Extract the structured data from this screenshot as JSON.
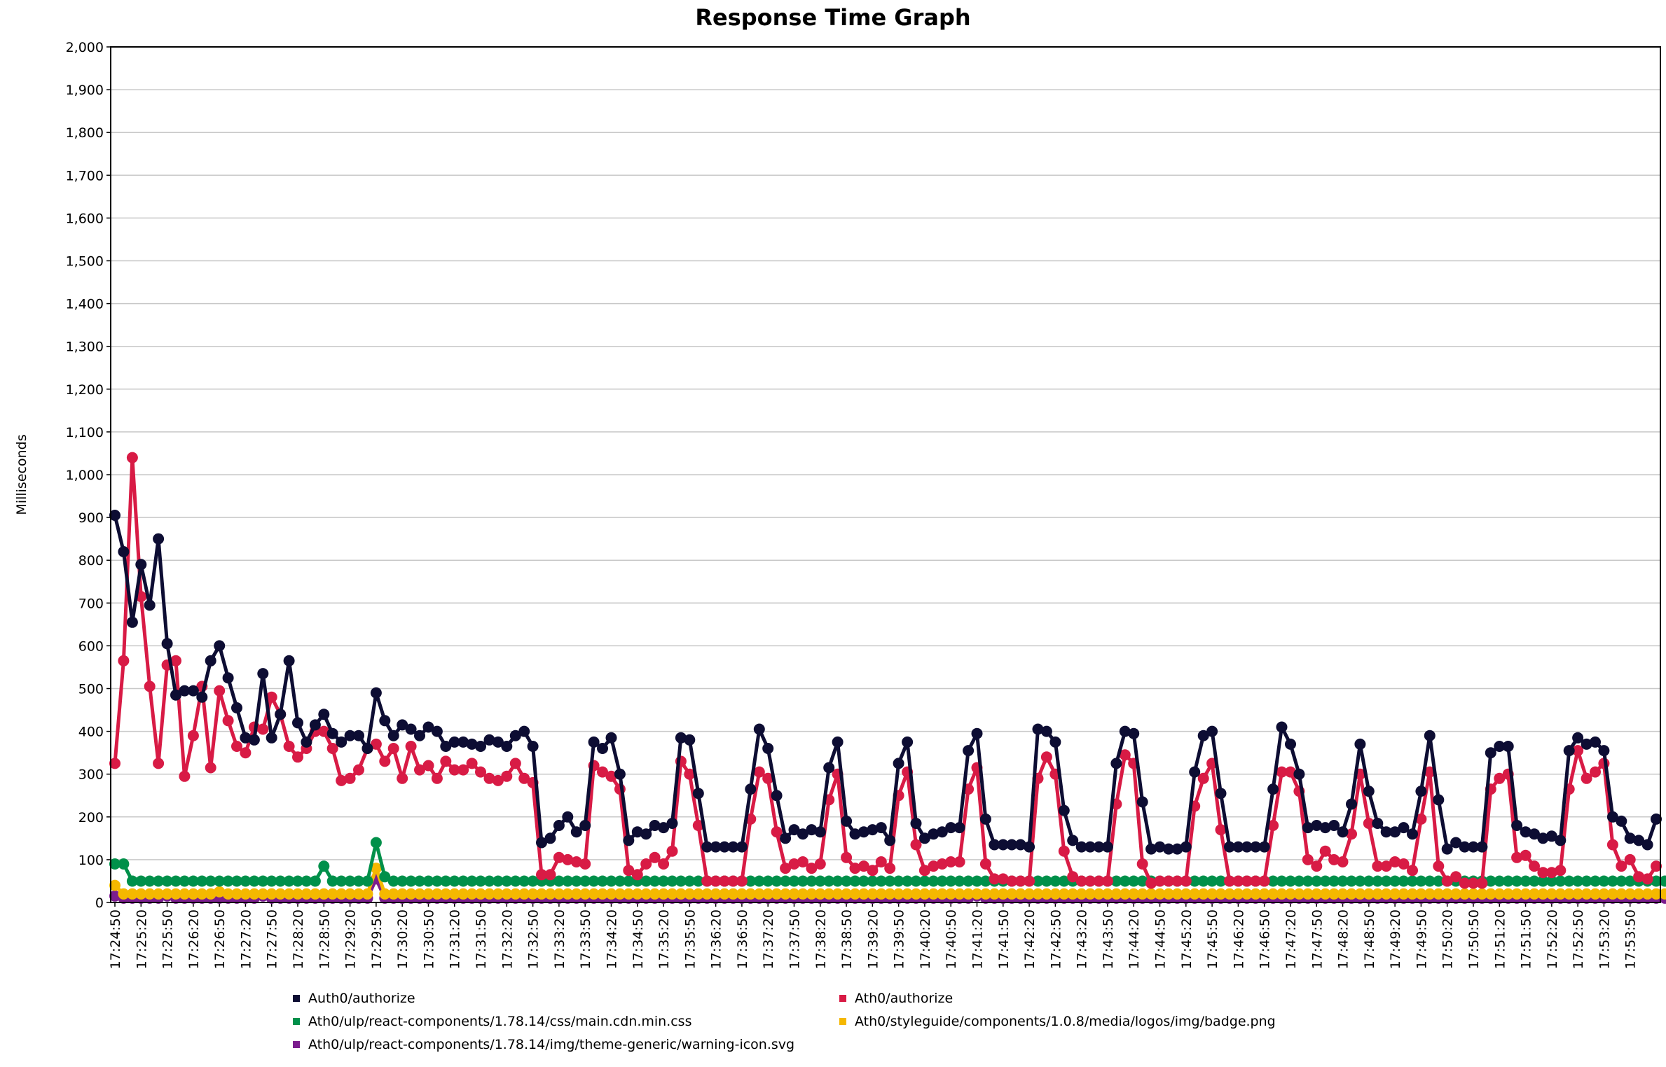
{
  "chart_data": {
    "type": "line",
    "title": "Response Time Graph",
    "ylabel": "Milliseconds",
    "xlabel": "",
    "ylim": [
      0,
      2000
    ],
    "yticks": [
      "0",
      "100",
      "200",
      "300",
      "400",
      "500",
      "600",
      "700",
      "800",
      "900",
      "1,000",
      "1,100",
      "1,200",
      "1,300",
      "1,400",
      "1,500",
      "1,600",
      "1,700",
      "1,800",
      "1,900",
      "2,000"
    ],
    "grid": true,
    "legend_position": "bottom",
    "x_start": "17:24:50",
    "x_end": "17:54:20",
    "x_tick_labels": [
      "17:24:50",
      "17:25:20",
      "17:25:50",
      "17:26:20",
      "17:26:50",
      "17:27:20",
      "17:27:50",
      "17:28:20",
      "17:28:50",
      "17:29:20",
      "17:29:50",
      "17:30:20",
      "17:30:50",
      "17:31:20",
      "17:31:50",
      "17:32:20",
      "17:32:50",
      "17:33:20",
      "17:33:50",
      "17:34:20",
      "17:34:50",
      "17:35:20",
      "17:35:50",
      "17:36:20",
      "17:36:50",
      "17:37:20",
      "17:37:50",
      "17:38:20",
      "17:38:50",
      "17:39:20",
      "17:39:50",
      "17:40:20",
      "17:40:50",
      "17:41:20",
      "17:41:50",
      "17:42:20",
      "17:42:50",
      "17:43:20",
      "17:43:50",
      "17:44:20",
      "17:44:50",
      "17:45:20",
      "17:45:50",
      "17:46:20",
      "17:46:50",
      "17:47:20",
      "17:47:50",
      "17:48:20",
      "17:48:50",
      "17:49:20",
      "17:49:50",
      "17:50:20",
      "17:50:50",
      "17:51:20",
      "17:51:50",
      "17:52:20",
      "17:52:50",
      "17:53:20",
      "17:53:50"
    ],
    "series": [
      {
        "name": "Auth0/authorize",
        "color": "#0d0d33",
        "values": [
          905,
          820,
          655,
          790,
          695,
          850,
          605,
          485,
          495,
          495,
          480,
          565,
          600,
          525,
          455,
          385,
          380,
          535,
          385,
          440,
          565,
          420,
          375,
          415,
          440,
          395,
          375,
          390,
          390,
          360,
          490,
          425,
          390,
          415,
          405,
          390,
          410,
          400,
          365,
          375,
          375,
          370,
          365,
          380,
          375,
          365,
          390,
          400,
          365,
          140,
          150,
          180,
          200,
          165,
          180,
          375,
          360,
          385,
          300,
          145,
          165,
          160,
          180,
          175,
          185,
          385,
          380,
          255,
          130,
          130,
          130,
          130,
          130,
          265,
          405,
          360,
          250,
          150,
          170,
          160,
          170,
          165,
          315,
          375,
          190,
          160,
          165,
          170,
          175,
          145,
          325,
          375,
          185,
          150,
          160,
          165,
          175,
          175,
          355,
          395,
          195,
          135,
          135,
          135,
          135,
          130,
          405,
          400,
          375,
          215,
          145,
          130,
          130,
          130,
          130,
          325,
          400,
          395,
          235,
          125,
          130,
          125,
          125,
          130,
          305,
          390,
          400,
          255,
          130,
          130,
          130,
          130,
          130,
          265,
          410,
          370,
          300,
          175,
          180,
          175,
          180,
          165,
          230,
          370,
          260,
          185,
          165,
          165,
          175,
          160,
          260,
          390,
          240,
          125,
          140,
          130,
          130,
          130,
          350,
          365,
          365,
          180,
          165,
          160,
          150,
          155,
          145,
          355,
          385,
          370,
          375,
          355,
          200,
          190,
          150,
          145,
          135,
          195
        ]
      },
      {
        "name": "Ath0/authorize",
        "color": "#d81b45",
        "values": [
          325,
          565,
          1040,
          715,
          505,
          325,
          555,
          565,
          295,
          390,
          505,
          315,
          495,
          425,
          365,
          350,
          410,
          405,
          480,
          440,
          365,
          340,
          360,
          400,
          400,
          360,
          285,
          290,
          310,
          360,
          370,
          330,
          360,
          290,
          365,
          310,
          320,
          290,
          330,
          310,
          310,
          325,
          305,
          290,
          285,
          295,
          325,
          290,
          280,
          65,
          65,
          105,
          100,
          95,
          90,
          320,
          305,
          295,
          265,
          75,
          65,
          90,
          105,
          90,
          120,
          330,
          300,
          180,
          50,
          50,
          50,
          50,
          50,
          195,
          305,
          290,
          165,
          80,
          90,
          95,
          80,
          90,
          240,
          300,
          105,
          80,
          85,
          75,
          95,
          80,
          250,
          305,
          135,
          75,
          85,
          90,
          95,
          95,
          265,
          315,
          90,
          55,
          55,
          50,
          50,
          50,
          290,
          340,
          300,
          120,
          60,
          50,
          50,
          50,
          50,
          230,
          345,
          325,
          90,
          45,
          50,
          50,
          50,
          50,
          225,
          290,
          325,
          170,
          50,
          50,
          50,
          50,
          50,
          180,
          305,
          305,
          260,
          100,
          85,
          120,
          100,
          95,
          160,
          300,
          185,
          85,
          85,
          95,
          90,
          75,
          195,
          305,
          85,
          50,
          60,
          45,
          45,
          45,
          265,
          290,
          300,
          105,
          110,
          85,
          70,
          70,
          75,
          265,
          355,
          290,
          305,
          325,
          135,
          85,
          100,
          60,
          55,
          85
        ]
      },
      {
        "name": "Ath0/ulp/react-components/1.78.14/css/main.cdn.min.css",
        "color": "#00904a",
        "values": [
          90,
          90,
          50,
          50,
          50,
          50,
          50,
          50,
          50,
          50,
          50,
          50,
          50,
          50,
          50,
          50,
          50,
          50,
          50,
          50,
          50,
          50,
          50,
          50,
          85,
          50,
          50,
          50,
          50,
          50,
          140,
          60,
          50,
          50,
          50,
          50,
          50,
          50,
          50,
          50,
          50,
          50,
          50,
          50,
          50,
          50,
          50,
          50,
          50,
          50,
          50,
          50,
          50,
          50,
          50,
          50,
          50,
          50,
          50,
          50,
          50,
          50,
          50,
          50,
          50,
          50,
          50,
          50,
          50,
          50,
          50,
          50,
          50,
          50,
          50,
          50,
          50,
          50,
          50,
          50,
          50,
          50,
          50,
          50,
          50,
          50,
          50,
          50,
          50,
          50,
          50,
          50,
          50,
          50,
          50,
          50,
          50,
          50,
          50,
          50,
          50,
          50,
          50,
          50,
          50,
          50,
          50,
          50,
          50,
          50,
          50,
          50,
          50,
          50,
          50,
          50,
          50,
          50,
          50,
          50,
          50,
          50,
          50,
          50,
          50,
          50,
          50,
          50,
          50,
          50,
          50,
          50,
          50,
          50,
          50,
          50,
          50,
          50,
          50,
          50,
          50,
          50,
          50,
          50,
          50,
          50,
          50,
          50,
          50,
          50,
          50,
          50,
          50,
          50,
          50,
          50,
          50,
          50,
          50,
          50,
          50,
          50,
          50,
          50,
          50,
          50,
          50,
          50,
          50,
          50,
          50,
          50,
          50,
          50,
          50,
          50,
          50,
          50,
          50
        ]
      },
      {
        "name": "Ath0/styleguide/components/1.0.8/media/logos/img/badge.png",
        "color": "#f5b800",
        "values": [
          40,
          20,
          20,
          20,
          20,
          20,
          20,
          20,
          20,
          20,
          20,
          20,
          25,
          20,
          20,
          20,
          20,
          20,
          20,
          20,
          20,
          20,
          20,
          20,
          20,
          20,
          20,
          20,
          20,
          20,
          80,
          20,
          20,
          20,
          20,
          20,
          20,
          20,
          20,
          20,
          20,
          20,
          20,
          20,
          20,
          20,
          20,
          20,
          20,
          20,
          20,
          20,
          20,
          20,
          20,
          20,
          20,
          20,
          20,
          20,
          20,
          20,
          20,
          20,
          20,
          20,
          20,
          20,
          20,
          20,
          20,
          20,
          20,
          20,
          20,
          20,
          20,
          20,
          20,
          20,
          20,
          20,
          20,
          20,
          20,
          20,
          20,
          20,
          20,
          20,
          20,
          20,
          20,
          20,
          20,
          20,
          20,
          20,
          20,
          20,
          20,
          20,
          20,
          20,
          20,
          20,
          20,
          20,
          20,
          20,
          20,
          20,
          20,
          20,
          20,
          20,
          20,
          20,
          20,
          20,
          20,
          20,
          20,
          20,
          20,
          20,
          20,
          20,
          20,
          20,
          20,
          20,
          20,
          20,
          20,
          20,
          20,
          20,
          20,
          20,
          20,
          20,
          20,
          20,
          20,
          20,
          20,
          20,
          20,
          20,
          20,
          20,
          20,
          20,
          20,
          20,
          20,
          20,
          20,
          20,
          20,
          20,
          20,
          20,
          20,
          20,
          20,
          20,
          20,
          20,
          20,
          20,
          20,
          20,
          20,
          20,
          20,
          20,
          20
        ]
      },
      {
        "name": "Ath0/ulp/react-components/1.78.14/img/theme-generic/warning-icon.svg",
        "color": "#7b1d8e",
        "values": [
          15,
          10,
          10,
          10,
          10,
          10,
          15,
          10,
          10,
          10,
          10,
          10,
          10,
          10,
          10,
          10,
          10,
          15,
          10,
          10,
          10,
          10,
          10,
          10,
          10,
          10,
          10,
          10,
          10,
          10,
          55,
          10,
          10,
          10,
          10,
          10,
          10,
          10,
          10,
          10,
          10,
          10,
          10,
          10,
          10,
          10,
          10,
          10,
          10,
          10,
          10,
          10,
          10,
          10,
          10,
          10,
          10,
          10,
          10,
          10,
          10,
          10,
          10,
          10,
          10,
          10,
          10,
          10,
          10,
          10,
          10,
          10,
          10,
          10,
          10,
          10,
          10,
          10,
          10,
          10,
          10,
          10,
          10,
          10,
          10,
          10,
          10,
          10,
          10,
          10,
          10,
          10,
          10,
          10,
          10,
          10,
          10,
          10,
          10,
          15,
          10,
          10,
          10,
          10,
          10,
          10,
          10,
          10,
          10,
          10,
          10,
          10,
          10,
          10,
          10,
          10,
          10,
          10,
          10,
          10,
          10,
          10,
          10,
          10,
          10,
          10,
          10,
          10,
          10,
          10,
          10,
          10,
          10,
          10,
          10,
          10,
          10,
          10,
          10,
          10,
          10,
          10,
          10,
          10,
          10,
          10,
          10,
          10,
          10,
          10,
          10,
          10,
          10,
          10,
          10,
          10,
          10,
          10,
          10,
          10,
          10,
          10,
          10,
          10,
          10,
          10,
          10,
          10,
          10,
          10,
          10,
          10,
          10,
          10,
          10,
          10,
          10,
          10,
          10
        ]
      }
    ]
  }
}
